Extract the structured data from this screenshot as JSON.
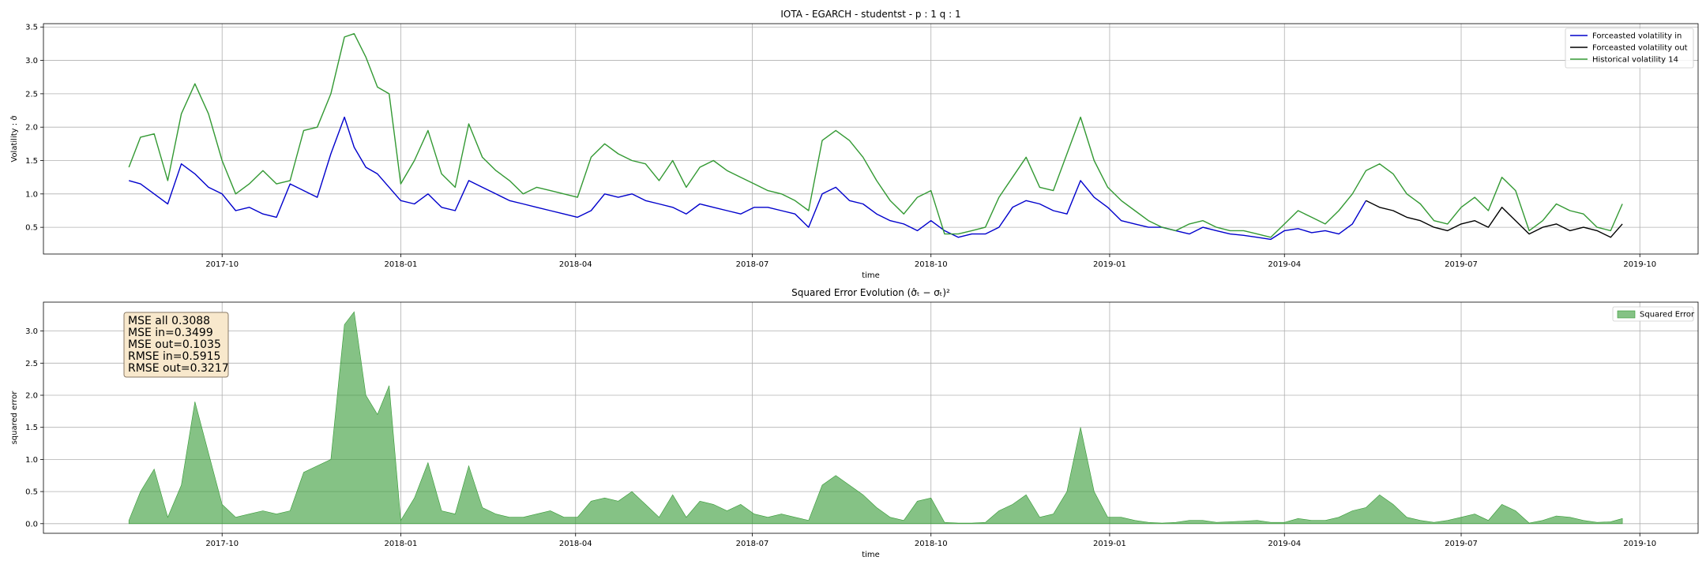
{
  "chart_data": [
    {
      "type": "line",
      "title": "IOTA - EGARCH - studentst - p : 1 q : 1",
      "xlabel": "time",
      "ylabel": "Volatility : σ̂",
      "xlim": [
        "2017-07-01",
        "2019-10-31"
      ],
      "ylim": [
        0.1,
        3.55
      ],
      "grid": true,
      "legend_placement": "top-right",
      "xticks": [
        "2017-10",
        "2018-01",
        "2018-04",
        "2018-07",
        "2018-10",
        "2019-01",
        "2019-04",
        "2019-07",
        "2019-10"
      ],
      "yticks": [
        "0.5",
        "1.0",
        "1.5",
        "2.0",
        "2.5",
        "3.0",
        "3.5"
      ],
      "series": [
        {
          "name": "Forceasted volatility in",
          "color": "#0000cc",
          "x": [
            "2017-08-14",
            "2017-08-20",
            "2017-08-27",
            "2017-09-03",
            "2017-09-10",
            "2017-09-17",
            "2017-09-24",
            "2017-10-01",
            "2017-10-08",
            "2017-10-15",
            "2017-10-22",
            "2017-10-29",
            "2017-11-05",
            "2017-11-12",
            "2017-11-19",
            "2017-11-26",
            "2017-12-03",
            "2017-12-08",
            "2017-12-14",
            "2017-12-20",
            "2017-12-26",
            "2018-01-01",
            "2018-01-08",
            "2018-01-15",
            "2018-01-22",
            "2018-01-29",
            "2018-02-05",
            "2018-02-12",
            "2018-02-19",
            "2018-02-26",
            "2018-03-05",
            "2018-03-12",
            "2018-03-19",
            "2018-03-26",
            "2018-04-02",
            "2018-04-09",
            "2018-04-16",
            "2018-04-23",
            "2018-04-30",
            "2018-05-07",
            "2018-05-14",
            "2018-05-21",
            "2018-05-28",
            "2018-06-04",
            "2018-06-11",
            "2018-06-18",
            "2018-06-25",
            "2018-07-02",
            "2018-07-09",
            "2018-07-16",
            "2018-07-23",
            "2018-07-30",
            "2018-08-06",
            "2018-08-13",
            "2018-08-20",
            "2018-08-27",
            "2018-09-03",
            "2018-09-10",
            "2018-09-17",
            "2018-09-24",
            "2018-10-01",
            "2018-10-08",
            "2018-10-15",
            "2018-10-22",
            "2018-10-29",
            "2018-11-05",
            "2018-11-12",
            "2018-11-19",
            "2018-11-26",
            "2018-12-03",
            "2018-12-10",
            "2018-12-17",
            "2018-12-24",
            "2018-12-31",
            "2019-01-07",
            "2019-01-14",
            "2019-01-21",
            "2019-01-28",
            "2019-02-04",
            "2019-02-11",
            "2019-02-18",
            "2019-02-25",
            "2019-03-04",
            "2019-03-11",
            "2019-03-18",
            "2019-03-25",
            "2019-04-01",
            "2019-04-08",
            "2019-04-15",
            "2019-04-22",
            "2019-04-29",
            "2019-05-06",
            "2019-05-13"
          ],
          "values": [
            1.2,
            1.15,
            1.0,
            0.85,
            1.45,
            1.3,
            1.1,
            1.0,
            0.75,
            0.8,
            0.7,
            0.65,
            1.15,
            1.05,
            0.95,
            1.6,
            2.15,
            1.7,
            1.4,
            1.3,
            1.1,
            0.9,
            0.85,
            1.0,
            0.8,
            0.75,
            1.2,
            1.1,
            1.0,
            0.9,
            0.85,
            0.8,
            0.75,
            0.7,
            0.65,
            0.75,
            1.0,
            0.95,
            1.0,
            0.9,
            0.85,
            0.8,
            0.7,
            0.85,
            0.8,
            0.75,
            0.7,
            0.8,
            0.8,
            0.75,
            0.7,
            0.5,
            1.0,
            1.1,
            0.9,
            0.85,
            0.7,
            0.6,
            0.55,
            0.45,
            0.6,
            0.45,
            0.35,
            0.4,
            0.4,
            0.5,
            0.8,
            0.9,
            0.85,
            0.75,
            0.7,
            1.2,
            0.95,
            0.8,
            0.6,
            0.55,
            0.5,
            0.5,
            0.45,
            0.4,
            0.5,
            0.45,
            0.4,
            0.38,
            0.35,
            0.32,
            0.45,
            0.48,
            0.42,
            0.45,
            0.4,
            0.55,
            0.9
          ]
        },
        {
          "name": "Forceasted volatility out",
          "color": "#000000",
          "x": [
            "2019-05-13",
            "2019-05-20",
            "2019-05-27",
            "2019-06-03",
            "2019-06-10",
            "2019-06-17",
            "2019-06-24",
            "2019-07-01",
            "2019-07-08",
            "2019-07-15",
            "2019-07-22",
            "2019-07-29",
            "2019-08-05",
            "2019-08-12",
            "2019-08-19",
            "2019-08-26",
            "2019-09-02",
            "2019-09-09",
            "2019-09-16",
            "2019-09-22"
          ],
          "values": [
            0.9,
            0.8,
            0.75,
            0.65,
            0.6,
            0.5,
            0.45,
            0.55,
            0.6,
            0.5,
            0.8,
            0.6,
            0.4,
            0.5,
            0.55,
            0.45,
            0.5,
            0.45,
            0.35,
            0.55
          ]
        },
        {
          "name": "Historical volatility 14",
          "color": "#339933",
          "x": [
            "2017-08-14",
            "2017-08-20",
            "2017-08-27",
            "2017-09-03",
            "2017-09-10",
            "2017-09-17",
            "2017-09-24",
            "2017-10-01",
            "2017-10-08",
            "2017-10-15",
            "2017-10-22",
            "2017-10-29",
            "2017-11-05",
            "2017-11-12",
            "2017-11-19",
            "2017-11-26",
            "2017-12-03",
            "2017-12-08",
            "2017-12-14",
            "2017-12-20",
            "2017-12-26",
            "2018-01-01",
            "2018-01-08",
            "2018-01-15",
            "2018-01-22",
            "2018-01-29",
            "2018-02-05",
            "2018-02-12",
            "2018-02-19",
            "2018-02-26",
            "2018-03-05",
            "2018-03-12",
            "2018-03-19",
            "2018-03-26",
            "2018-04-02",
            "2018-04-09",
            "2018-04-16",
            "2018-04-23",
            "2018-04-30",
            "2018-05-07",
            "2018-05-14",
            "2018-05-21",
            "2018-05-28",
            "2018-06-04",
            "2018-06-11",
            "2018-06-18",
            "2018-06-25",
            "2018-07-02",
            "2018-07-09",
            "2018-07-16",
            "2018-07-23",
            "2018-07-30",
            "2018-08-06",
            "2018-08-13",
            "2018-08-20",
            "2018-08-27",
            "2018-09-03",
            "2018-09-10",
            "2018-09-17",
            "2018-09-24",
            "2018-10-01",
            "2018-10-08",
            "2018-10-15",
            "2018-10-22",
            "2018-10-29",
            "2018-11-05",
            "2018-11-12",
            "2018-11-19",
            "2018-11-26",
            "2018-12-03",
            "2018-12-10",
            "2018-12-17",
            "2018-12-24",
            "2018-12-31",
            "2019-01-07",
            "2019-01-14",
            "2019-01-21",
            "2019-01-28",
            "2019-02-04",
            "2019-02-11",
            "2019-02-18",
            "2019-02-25",
            "2019-03-04",
            "2019-03-11",
            "2019-03-18",
            "2019-03-25",
            "2019-04-01",
            "2019-04-08",
            "2019-04-15",
            "2019-04-22",
            "2019-04-29",
            "2019-05-06",
            "2019-05-13",
            "2019-05-20",
            "2019-05-27",
            "2019-06-03",
            "2019-06-10",
            "2019-06-17",
            "2019-06-24",
            "2019-07-01",
            "2019-07-08",
            "2019-07-15",
            "2019-07-22",
            "2019-07-29",
            "2019-08-05",
            "2019-08-12",
            "2019-08-19",
            "2019-08-26",
            "2019-09-02",
            "2019-09-09",
            "2019-09-16",
            "2019-09-22"
          ],
          "values": [
            1.4,
            1.85,
            1.9,
            1.2,
            2.2,
            2.65,
            2.2,
            1.5,
            1.0,
            1.15,
            1.35,
            1.15,
            1.2,
            1.95,
            2.0,
            2.5,
            3.35,
            3.4,
            3.05,
            2.6,
            2.5,
            1.15,
            1.5,
            1.95,
            1.3,
            1.1,
            2.05,
            1.55,
            1.35,
            1.2,
            1.0,
            1.1,
            1.05,
            1.0,
            0.95,
            1.55,
            1.75,
            1.6,
            1.5,
            1.45,
            1.2,
            1.5,
            1.1,
            1.4,
            1.5,
            1.35,
            1.25,
            1.15,
            1.05,
            1.0,
            0.9,
            0.75,
            1.8,
            1.95,
            1.8,
            1.55,
            1.2,
            0.9,
            0.7,
            0.95,
            1.05,
            0.4,
            0.4,
            0.45,
            0.5,
            0.95,
            1.25,
            1.55,
            1.1,
            1.05,
            1.6,
            2.15,
            1.5,
            1.1,
            0.9,
            0.75,
            0.6,
            0.5,
            0.45,
            0.55,
            0.6,
            0.5,
            0.45,
            0.45,
            0.4,
            0.35,
            0.55,
            0.75,
            0.65,
            0.55,
            0.75,
            1.0,
            1.35,
            1.45,
            1.3,
            1.0,
            0.85,
            0.6,
            0.55,
            0.8,
            0.95,
            0.75,
            1.25,
            1.05,
            0.45,
            0.6,
            0.85,
            0.75,
            0.7,
            0.5,
            0.45,
            0.85
          ]
        }
      ]
    },
    {
      "type": "area",
      "title": "Squared Error Evolution (σ̂ₜ − σₜ)²",
      "xlabel": "time",
      "ylabel": "squared error",
      "xlim": [
        "2017-07-01",
        "2019-10-31"
      ],
      "ylim": [
        -0.15,
        3.45
      ],
      "grid": true,
      "legend_placement": "top-right",
      "xticks": [
        "2017-10",
        "2018-01",
        "2018-04",
        "2018-07",
        "2018-10",
        "2019-01",
        "2019-04",
        "2019-07",
        "2019-10"
      ],
      "yticks": [
        "0.0",
        "0.5",
        "1.0",
        "1.5",
        "2.0",
        "2.5",
        "3.0"
      ],
      "series": [
        {
          "name": "Squared Error",
          "color": "#339933",
          "x": [
            "2017-08-14",
            "2017-08-20",
            "2017-08-27",
            "2017-09-03",
            "2017-09-10",
            "2017-09-17",
            "2017-09-24",
            "2017-10-01",
            "2017-10-08",
            "2017-10-15",
            "2017-10-22",
            "2017-10-29",
            "2017-11-05",
            "2017-11-12",
            "2017-11-19",
            "2017-11-26",
            "2017-12-03",
            "2017-12-08",
            "2017-12-14",
            "2017-12-20",
            "2017-12-26",
            "2018-01-01",
            "2018-01-08",
            "2018-01-15",
            "2018-01-22",
            "2018-01-29",
            "2018-02-05",
            "2018-02-12",
            "2018-02-19",
            "2018-02-26",
            "2018-03-05",
            "2018-03-12",
            "2018-03-19",
            "2018-03-26",
            "2018-04-02",
            "2018-04-09",
            "2018-04-16",
            "2018-04-23",
            "2018-04-30",
            "2018-05-07",
            "2018-05-14",
            "2018-05-21",
            "2018-05-28",
            "2018-06-04",
            "2018-06-11",
            "2018-06-18",
            "2018-06-25",
            "2018-07-02",
            "2018-07-09",
            "2018-07-16",
            "2018-07-23",
            "2018-07-30",
            "2018-08-06",
            "2018-08-13",
            "2018-08-20",
            "2018-08-27",
            "2018-09-03",
            "2018-09-10",
            "2018-09-17",
            "2018-09-24",
            "2018-10-01",
            "2018-10-08",
            "2018-10-15",
            "2018-10-22",
            "2018-10-29",
            "2018-11-05",
            "2018-11-12",
            "2018-11-19",
            "2018-11-26",
            "2018-12-03",
            "2018-12-10",
            "2018-12-17",
            "2018-12-24",
            "2018-12-31",
            "2019-01-07",
            "2019-01-14",
            "2019-01-21",
            "2019-01-28",
            "2019-02-04",
            "2019-02-11",
            "2019-02-18",
            "2019-02-25",
            "2019-03-04",
            "2019-03-11",
            "2019-03-18",
            "2019-03-25",
            "2019-04-01",
            "2019-04-08",
            "2019-04-15",
            "2019-04-22",
            "2019-04-29",
            "2019-05-06",
            "2019-05-13",
            "2019-05-20",
            "2019-05-27",
            "2019-06-03",
            "2019-06-10",
            "2019-06-17",
            "2019-06-24",
            "2019-07-01",
            "2019-07-08",
            "2019-07-15",
            "2019-07-22",
            "2019-07-29",
            "2019-08-05",
            "2019-08-12",
            "2019-08-19",
            "2019-08-26",
            "2019-09-02",
            "2019-09-09",
            "2019-09-16",
            "2019-09-22"
          ],
          "values": [
            0.05,
            0.5,
            0.85,
            0.1,
            0.6,
            1.9,
            1.1,
            0.3,
            0.1,
            0.15,
            0.2,
            0.15,
            0.2,
            0.8,
            0.9,
            1.0,
            3.1,
            3.3,
            2.0,
            1.7,
            2.15,
            0.05,
            0.4,
            0.95,
            0.2,
            0.15,
            0.9,
            0.25,
            0.15,
            0.1,
            0.1,
            0.15,
            0.2,
            0.1,
            0.1,
            0.35,
            0.4,
            0.35,
            0.5,
            0.3,
            0.1,
            0.45,
            0.1,
            0.35,
            0.3,
            0.2,
            0.3,
            0.15,
            0.1,
            0.15,
            0.1,
            0.05,
            0.6,
            0.75,
            0.6,
            0.45,
            0.25,
            0.1,
            0.05,
            0.35,
            0.4,
            0.02,
            0.01,
            0.01,
            0.02,
            0.2,
            0.3,
            0.45,
            0.1,
            0.15,
            0.5,
            1.5,
            0.5,
            0.1,
            0.1,
            0.05,
            0.02,
            0.01,
            0.02,
            0.05,
            0.05,
            0.02,
            0.03,
            0.04,
            0.05,
            0.02,
            0.02,
            0.08,
            0.05,
            0.05,
            0.1,
            0.2,
            0.25,
            0.45,
            0.3,
            0.1,
            0.05,
            0.02,
            0.05,
            0.1,
            0.15,
            0.05,
            0.3,
            0.2,
            0.01,
            0.05,
            0.12,
            0.1,
            0.05,
            0.02,
            0.03,
            0.08
          ]
        }
      ],
      "annotation": {
        "lines": [
          "MSE all 0.3088",
          "MSE in=0.3499",
          "MSE out=0.1035",
          "RMSE in=0.5915",
          "RMSE out=0.3217"
        ],
        "box_color": "#f8e8cc",
        "edge_color": "#8a7a66"
      }
    }
  ]
}
